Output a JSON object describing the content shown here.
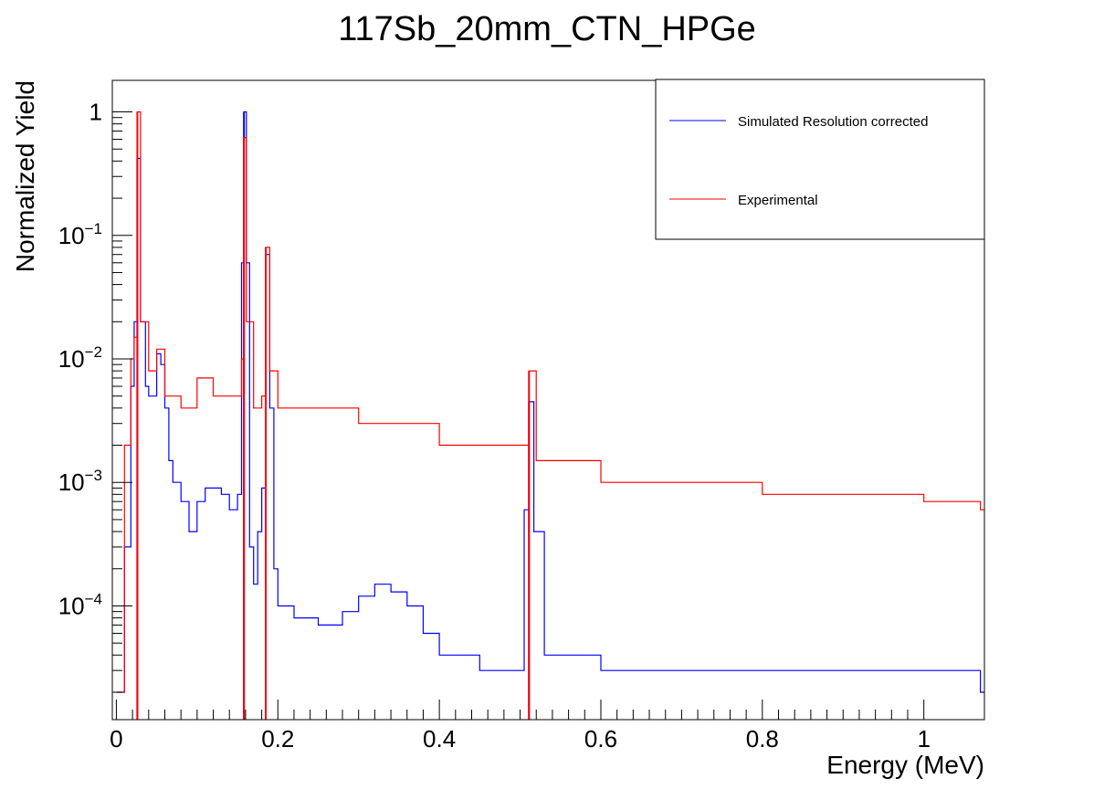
{
  "chart_data": {
    "type": "line",
    "title": "117Sb_20mm_CTN_HPGe",
    "xlabel": "Energy (MeV)",
    "ylabel": "Normalized Yield",
    "xlim": [
      -0.005,
      1.075
    ],
    "ylim": [
      1.2e-05,
      1.8
    ],
    "yscale": "log",
    "grid": false,
    "legend_position": "top-right",
    "x_ticks": [
      {
        "value": 0,
        "label": "0"
      },
      {
        "value": 0.2,
        "label": "0.2"
      },
      {
        "value": 0.4,
        "label": "0.4"
      },
      {
        "value": 0.6,
        "label": "0.6"
      },
      {
        "value": 0.8,
        "label": "0.8"
      },
      {
        "value": 1.0,
        "label": "1"
      }
    ],
    "y_ticks": [
      {
        "value": 1,
        "base": "1",
        "exp": ""
      },
      {
        "value": 0.1,
        "base": "10",
        "exp": "−1"
      },
      {
        "value": 0.01,
        "base": "10",
        "exp": "−2"
      },
      {
        "value": 0.001,
        "base": "10",
        "exp": "−3"
      },
      {
        "value": 0.0001,
        "base": "10",
        "exp": "−4"
      }
    ],
    "series": [
      {
        "name": "Simulated Resolution corrected",
        "color": "#0000ff",
        "style": "histogram-step",
        "peaks": [
          {
            "energy": 0.026,
            "yield": 0.42
          },
          {
            "energy": 0.158,
            "yield": 1.0
          },
          {
            "energy": 0.185,
            "yield": 0.07
          },
          {
            "energy": 0.511,
            "yield": 0.0045
          }
        ],
        "x": [
          0.0,
          0.01,
          0.018,
          0.022,
          0.026,
          0.03,
          0.036,
          0.04,
          0.045,
          0.05,
          0.055,
          0.06,
          0.065,
          0.07,
          0.08,
          0.09,
          0.1,
          0.11,
          0.12,
          0.13,
          0.14,
          0.15,
          0.155,
          0.158,
          0.161,
          0.165,
          0.17,
          0.175,
          0.18,
          0.185,
          0.19,
          0.195,
          0.2,
          0.22,
          0.25,
          0.28,
          0.3,
          0.32,
          0.34,
          0.36,
          0.38,
          0.4,
          0.45,
          0.5,
          0.505,
          0.511,
          0.517,
          0.53,
          0.6,
          0.7,
          0.8,
          0.9,
          1.0,
          1.07
        ],
        "y": [
          2e-05,
          0.0003,
          0.006,
          0.02,
          0.42,
          0.02,
          0.006,
          0.005,
          0.005,
          0.011,
          0.009,
          0.004,
          0.0015,
          0.001,
          0.0007,
          0.0004,
          0.0007,
          0.0009,
          0.0009,
          0.0008,
          0.0006,
          0.0008,
          0.06,
          1.0,
          0.06,
          0.0003,
          0.00015,
          0.0004,
          0.0009,
          0.07,
          0.004,
          0.0002,
          0.0001,
          8e-05,
          7e-05,
          9e-05,
          0.00012,
          0.00015,
          0.00013,
          0.0001,
          6e-05,
          4e-05,
          3e-05,
          3e-05,
          0.0006,
          0.0045,
          0.0004,
          4e-05,
          3e-05,
          3e-05,
          3e-05,
          3e-05,
          3e-05,
          2e-05
        ]
      },
      {
        "name": "Experimental",
        "color": "#ff0000",
        "style": "histogram-step",
        "peaks": [
          {
            "energy": 0.026,
            "yield": 1.0
          },
          {
            "energy": 0.158,
            "yield": 0.62
          },
          {
            "energy": 0.185,
            "yield": 0.08
          },
          {
            "energy": 0.511,
            "yield": 0.008
          }
        ],
        "x": [
          0.0,
          0.01,
          0.018,
          0.022,
          0.026,
          0.03,
          0.04,
          0.05,
          0.06,
          0.08,
          0.1,
          0.12,
          0.14,
          0.155,
          0.158,
          0.161,
          0.17,
          0.18,
          0.185,
          0.19,
          0.2,
          0.25,
          0.3,
          0.35,
          0.4,
          0.45,
          0.5,
          0.511,
          0.52,
          0.6,
          0.7,
          0.8,
          0.9,
          1.0,
          1.07
        ],
        "y": [
          2e-05,
          0.002,
          0.01,
          0.015,
          1.0,
          0.02,
          0.008,
          0.012,
          0.005,
          0.004,
          0.007,
          0.005,
          0.005,
          0.01,
          0.62,
          0.02,
          0.004,
          0.005,
          0.08,
          0.008,
          0.004,
          0.004,
          0.003,
          0.003,
          0.002,
          0.002,
          0.002,
          0.008,
          0.0015,
          0.001,
          0.001,
          0.0008,
          0.0008,
          0.0007,
          0.0006
        ]
      }
    ]
  }
}
